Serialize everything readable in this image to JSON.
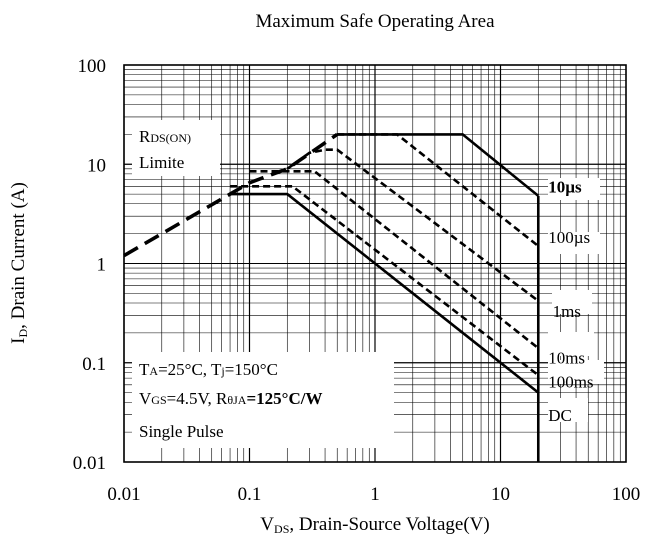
{
  "chart_data": {
    "type": "line",
    "title": "Maximum Safe Operating Area",
    "x_scale": "log",
    "y_scale": "log",
    "xlim": [
      0.01,
      100
    ],
    "ylim": [
      0.01,
      100
    ],
    "grid": true,
    "xlabel": {
      "main": "V",
      "sub": "DS",
      "rest": ", Drain-Source Voltage(V)"
    },
    "ylabel": {
      "main": "I",
      "sub": "D",
      "rest": ", Drain Current (A)"
    },
    "x_ticks": [
      {
        "value": 0.01,
        "label": "0.01"
      },
      {
        "value": 0.1,
        "label": "0.1"
      },
      {
        "value": 1,
        "label": "1"
      },
      {
        "value": 10,
        "label": "10"
      },
      {
        "value": 100,
        "label": "100"
      }
    ],
    "y_ticks": [
      {
        "value": 0.01,
        "label": "0.01"
      },
      {
        "value": 0.1,
        "label": "0.1"
      },
      {
        "value": 1,
        "label": "1"
      },
      {
        "value": 10,
        "label": "10"
      },
      {
        "value": 100,
        "label": "100"
      }
    ],
    "rds_limit": {
      "label_main": "R",
      "label_sub": "DS(ON)",
      "label_line2": "Limite",
      "points": [
        [
          0.01,
          1.2
        ],
        [
          0.07,
          5
        ],
        [
          0.1,
          6.5
        ],
        [
          0.2,
          9
        ],
        [
          0.5,
          20
        ]
      ]
    },
    "series": [
      {
        "name": "10µs",
        "style": "solid",
        "points": [
          [
            0.5,
            20
          ],
          [
            5,
            20
          ],
          [
            20,
            4.8
          ]
        ]
      },
      {
        "name": "100µs",
        "style": "dashed",
        "points": [
          [
            0.5,
            20
          ],
          [
            1.5,
            20
          ],
          [
            20,
            1.5
          ]
        ]
      },
      {
        "name": "1ms",
        "style": "dashed",
        "points": [
          [
            0.2,
            9
          ],
          [
            0.3,
            13
          ],
          [
            0.4,
            14
          ],
          [
            0.5,
            14
          ],
          [
            20,
            0.42
          ]
        ]
      },
      {
        "name": "10ms",
        "style": "dashed",
        "points": [
          [
            0.1,
            8.5
          ],
          [
            0.33,
            8.5
          ],
          [
            20,
            0.14
          ]
        ]
      },
      {
        "name": "100ms",
        "style": "dashed",
        "points": [
          [
            0.07,
            6
          ],
          [
            0.22,
            6
          ],
          [
            20,
            0.075
          ]
        ]
      },
      {
        "name": "DC",
        "style": "solid",
        "points": [
          [
            0.07,
            5
          ],
          [
            0.2,
            5
          ],
          [
            20,
            0.05
          ]
        ]
      }
    ],
    "vertical_limit": {
      "x": 20,
      "y_from": 0.01,
      "y_to": 4.8
    },
    "curve_labels": [
      {
        "text": "10µs",
        "x": 24,
        "y": 5.2,
        "bold": true
      },
      {
        "text": "100µs",
        "x": 24,
        "y": 1.6,
        "bold": false
      },
      {
        "text": "1ms",
        "x": 26,
        "y": 0.29,
        "bold": false
      },
      {
        "text": "10ms",
        "x": 24,
        "y": 0.098,
        "bold": false
      },
      {
        "text": "100ms",
        "x": 24,
        "y": 0.056,
        "bold": false
      },
      {
        "text": "DC",
        "x": 24,
        "y": 0.026,
        "bold": false
      }
    ],
    "conditions": {
      "line1": [
        {
          "t": "T",
          "sub": false
        },
        {
          "t": "A",
          "sub": true
        },
        {
          "t": "=25°C, T",
          "sub": false
        },
        {
          "t": "j",
          "sub": true
        },
        {
          "t": "=150°C",
          "sub": false
        }
      ],
      "line2": [
        {
          "t": "V",
          "sub": false
        },
        {
          "t": "GS",
          "sub": true
        },
        {
          "t": "=4.5V, R",
          "sub": false
        },
        {
          "t": "θJA",
          "sub": true
        },
        {
          "t": "=125°C/W",
          "sub": false,
          "bold": true
        }
      ],
      "line3": "Single Pulse"
    }
  }
}
